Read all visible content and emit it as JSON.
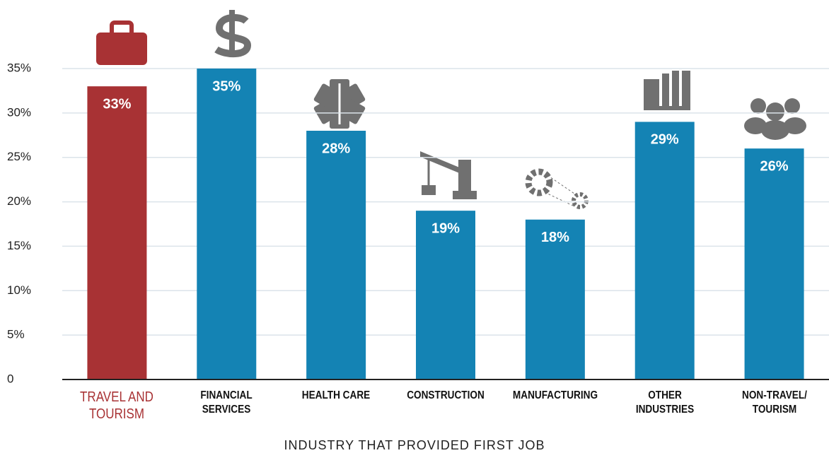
{
  "chart_data": {
    "type": "bar",
    "x_label": "INDUSTRY THAT PROVIDED FIRST JOB",
    "categories": [
      "TRAVEL AND TOURISM",
      "FINANCIAL SERVICES",
      "HEALTH CARE",
      "CONSTRUCTION",
      "MANUFACTURING",
      "OTHER INDUSTRIES",
      "NON-TRAVEL/ TOURISM"
    ],
    "values": [
      33,
      35,
      28,
      19,
      18,
      29,
      26
    ],
    "value_labels": [
      "33%",
      "35%",
      "28%",
      "19%",
      "18%",
      "29%",
      "26%"
    ],
    "colors": [
      "#a83234",
      "#1483b4",
      "#1483b4",
      "#1483b4",
      "#1483b4",
      "#1483b4",
      "#1483b4"
    ],
    "ylim": [
      0,
      35
    ],
    "yticks": [
      0,
      {
        "value": 5,
        "label": "5%"
      },
      {
        "value": 10,
        "label": "10%"
      },
      {
        "value": 15,
        "label": "15%"
      },
      {
        "value": 20,
        "label": "20%"
      },
      {
        "value": 25,
        "label": "25%"
      },
      {
        "value": 30,
        "label": "30%"
      },
      {
        "value": 35,
        "label": "35%"
      }
    ],
    "grid": true
  }
}
